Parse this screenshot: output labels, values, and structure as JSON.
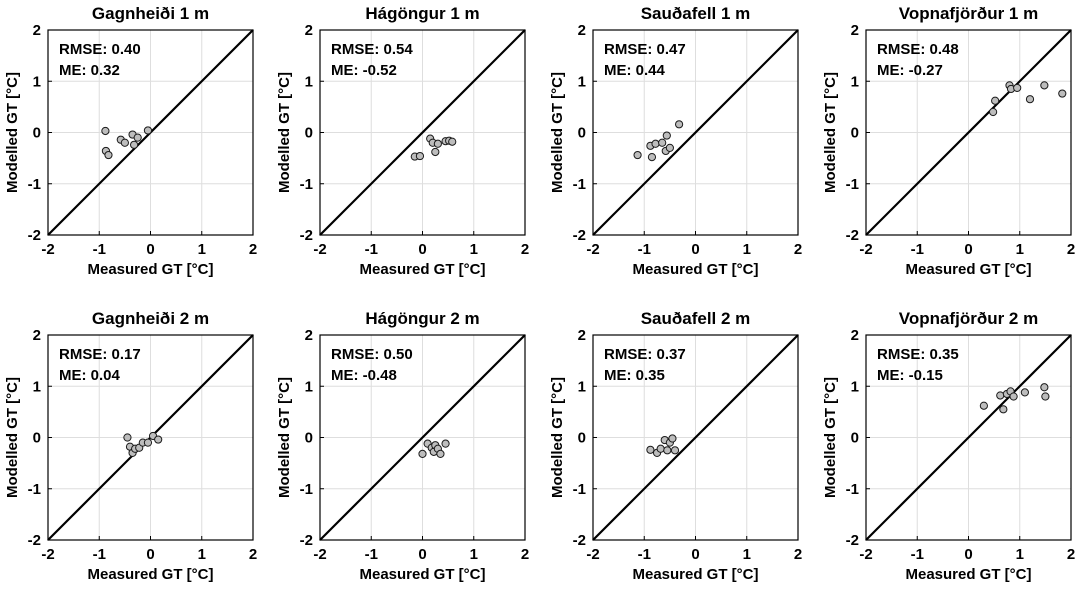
{
  "chart_data": [
    {
      "type": "scatter",
      "title": "Gagnheiði 1 m",
      "xlabel": "Measured GT [°C]",
      "ylabel": "Modelled GT [°C]",
      "xlim": [
        -2,
        2
      ],
      "ylim": [
        -2,
        2
      ],
      "xticks": [
        "-2",
        "-1",
        "0",
        "1",
        "2"
      ],
      "yticks": [
        "-2",
        "-1",
        "0",
        "1",
        "2"
      ],
      "grid": true,
      "rmse": "RMSE: 0.40",
      "me": "ME: 0.32",
      "points": [
        [
          -0.88,
          0.03
        ],
        [
          -0.87,
          -0.36
        ],
        [
          -0.82,
          -0.44
        ],
        [
          -0.58,
          -0.14
        ],
        [
          -0.5,
          -0.2
        ],
        [
          -0.35,
          -0.04
        ],
        [
          -0.32,
          -0.24
        ],
        [
          -0.25,
          -0.1
        ],
        [
          -0.05,
          0.04
        ]
      ]
    },
    {
      "type": "scatter",
      "title": "Hágöngur 1 m",
      "xlabel": "Measured GT [°C]",
      "ylabel": "Modelled GT [°C]",
      "xlim": [
        -2,
        2
      ],
      "ylim": [
        -2,
        2
      ],
      "xticks": [
        "-2",
        "-1",
        "0",
        "1",
        "2"
      ],
      "yticks": [
        "-2",
        "-1",
        "0",
        "1",
        "2"
      ],
      "grid": true,
      "rmse": "RMSE: 0.54",
      "me": "ME: -0.52",
      "points": [
        [
          -0.15,
          -0.47
        ],
        [
          -0.05,
          -0.46
        ],
        [
          0.15,
          -0.12
        ],
        [
          0.2,
          -0.2
        ],
        [
          0.25,
          -0.38
        ],
        [
          0.3,
          -0.22
        ],
        [
          0.45,
          -0.17
        ],
        [
          0.52,
          -0.16
        ],
        [
          0.58,
          -0.18
        ]
      ]
    },
    {
      "type": "scatter",
      "title": "Sauðafell 1 m",
      "xlabel": "Measured GT [°C]",
      "ylabel": "Modelled GT [°C]",
      "xlim": [
        -2,
        2
      ],
      "ylim": [
        -2,
        2
      ],
      "xticks": [
        "-2",
        "-1",
        "0",
        "1",
        "2"
      ],
      "yticks": [
        "-2",
        "-1",
        "0",
        "1",
        "2"
      ],
      "grid": true,
      "rmse": "RMSE: 0.47",
      "me": "ME: 0.44",
      "points": [
        [
          -1.13,
          -0.44
        ],
        [
          -0.88,
          -0.26
        ],
        [
          -0.85,
          -0.48
        ],
        [
          -0.78,
          -0.22
        ],
        [
          -0.65,
          -0.2
        ],
        [
          -0.58,
          -0.36
        ],
        [
          -0.56,
          -0.06
        ],
        [
          -0.5,
          -0.3
        ],
        [
          -0.32,
          0.16
        ]
      ]
    },
    {
      "type": "scatter",
      "title": "Vopnafjörður 1 m",
      "xlabel": "Measured GT [°C]",
      "ylabel": "Modelled GT [°C]",
      "xlim": [
        -2,
        2
      ],
      "ylim": [
        -2,
        2
      ],
      "xticks": [
        "-2",
        "-1",
        "0",
        "1",
        "2"
      ],
      "yticks": [
        "-2",
        "-1",
        "0",
        "1",
        "2"
      ],
      "grid": true,
      "rmse": "RMSE: 0.48",
      "me": "ME: -0.27",
      "points": [
        [
          0.48,
          0.4
        ],
        [
          0.52,
          0.62
        ],
        [
          0.8,
          0.92
        ],
        [
          0.83,
          0.85
        ],
        [
          0.95,
          0.87
        ],
        [
          1.2,
          0.65
        ],
        [
          1.48,
          0.92
        ],
        [
          1.83,
          0.76
        ]
      ]
    },
    {
      "type": "scatter",
      "title": "Gagnheiði 2 m",
      "xlabel": "Measured GT [°C]",
      "ylabel": "Modelled GT [°C]",
      "xlim": [
        -2,
        2
      ],
      "ylim": [
        -2,
        2
      ],
      "xticks": [
        "-2",
        "-1",
        "0",
        "1",
        "2"
      ],
      "yticks": [
        "-2",
        "-1",
        "0",
        "1",
        "2"
      ],
      "grid": true,
      "rmse": "RMSE: 0.17",
      "me": "ME: 0.04",
      "points": [
        [
          -0.45,
          0.0
        ],
        [
          -0.4,
          -0.18
        ],
        [
          -0.35,
          -0.3
        ],
        [
          -0.3,
          -0.22
        ],
        [
          -0.22,
          -0.2
        ],
        [
          -0.15,
          -0.1
        ],
        [
          -0.05,
          -0.1
        ],
        [
          0.05,
          0.03
        ],
        [
          0.15,
          -0.04
        ]
      ]
    },
    {
      "type": "scatter",
      "title": "Hágöngur 2 m",
      "xlabel": "Measured GT [°C]",
      "ylabel": "Modelled GT [°C]",
      "xlim": [
        -2,
        2
      ],
      "ylim": [
        -2,
        2
      ],
      "xticks": [
        "-2",
        "-1",
        "0",
        "1",
        "2"
      ],
      "yticks": [
        "-2",
        "-1",
        "0",
        "1",
        "2"
      ],
      "grid": true,
      "rmse": "RMSE: 0.50",
      "me": "ME: -0.48",
      "points": [
        [
          0.0,
          -0.32
        ],
        [
          0.1,
          -0.12
        ],
        [
          0.18,
          -0.2
        ],
        [
          0.22,
          -0.28
        ],
        [
          0.25,
          -0.15
        ],
        [
          0.3,
          -0.22
        ],
        [
          0.35,
          -0.32
        ],
        [
          0.45,
          -0.12
        ]
      ]
    },
    {
      "type": "scatter",
      "title": "Sauðafell 2 m",
      "xlabel": "Measured GT [°C]",
      "ylabel": "Modelled GT [°C]",
      "xlim": [
        -2,
        2
      ],
      "ylim": [
        -2,
        2
      ],
      "xticks": [
        "-2",
        "-1",
        "0",
        "1",
        "2"
      ],
      "yticks": [
        "-2",
        "-1",
        "0",
        "1",
        "2"
      ],
      "grid": true,
      "rmse": "RMSE: 0.37",
      "me": "ME: 0.35",
      "points": [
        [
          -0.88,
          -0.24
        ],
        [
          -0.75,
          -0.3
        ],
        [
          -0.68,
          -0.22
        ],
        [
          -0.6,
          -0.05
        ],
        [
          -0.55,
          -0.25
        ],
        [
          -0.5,
          -0.1
        ],
        [
          -0.45,
          -0.02
        ],
        [
          -0.4,
          -0.25
        ]
      ]
    },
    {
      "type": "scatter",
      "title": "Vopnafjörður 2 m",
      "xlabel": "Measured GT [°C]",
      "ylabel": "Modelled GT [°C]",
      "xlim": [
        -2,
        2
      ],
      "ylim": [
        -2,
        2
      ],
      "xticks": [
        "-2",
        "-1",
        "0",
        "1",
        "2"
      ],
      "yticks": [
        "-2",
        "-1",
        "0",
        "1",
        "2"
      ],
      "grid": true,
      "rmse": "RMSE: 0.35",
      "me": "ME: -0.15",
      "points": [
        [
          0.3,
          0.62
        ],
        [
          0.62,
          0.82
        ],
        [
          0.68,
          0.55
        ],
        [
          0.75,
          0.85
        ],
        [
          0.82,
          0.9
        ],
        [
          0.88,
          0.8
        ],
        [
          1.1,
          0.88
        ],
        [
          1.48,
          0.98
        ],
        [
          1.5,
          0.8
        ]
      ]
    }
  ],
  "colors": {
    "marker_fill": "#bdbdbd",
    "marker_stroke": "#1a1a1a",
    "grid": "#dedede",
    "axis": "#000000",
    "background": "#ffffff"
  }
}
